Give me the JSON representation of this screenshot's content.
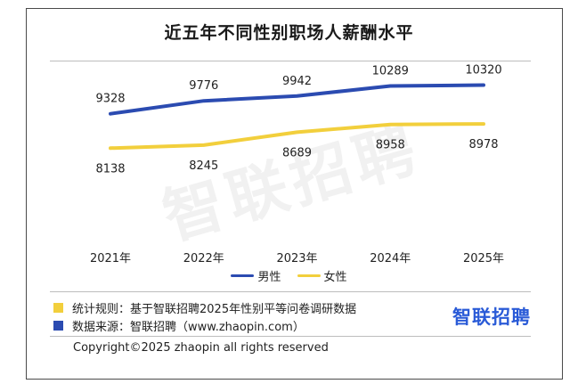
{
  "chart_data": {
    "type": "line",
    "title": "近五年不同性别职场人薪酬水平",
    "categories": [
      "2021年",
      "2022年",
      "2023年",
      "2024年",
      "2025年"
    ],
    "series": [
      {
        "name": "男性",
        "values": [
          9328,
          9776,
          9942,
          10289,
          10320
        ],
        "color": "#2b4bb1"
      },
      {
        "name": "女性",
        "values": [
          8138,
          8245,
          8689,
          8958,
          8978
        ],
        "color": "#f2cf3c"
      }
    ],
    "legend_position": "bottom",
    "grid": false
  },
  "watermark": "智联招聘",
  "notes": [
    {
      "label": "统计规则：基于智联招聘2025年性别平等问卷调研数据",
      "color": "#f2cf3c"
    },
    {
      "label": "数据来源：智联招聘（www.zhaopin.com）",
      "color": "#2b4bb1"
    }
  ],
  "brand": "智联招聘",
  "copyright": "Copyright©2025 zhaopin all rights reserved"
}
